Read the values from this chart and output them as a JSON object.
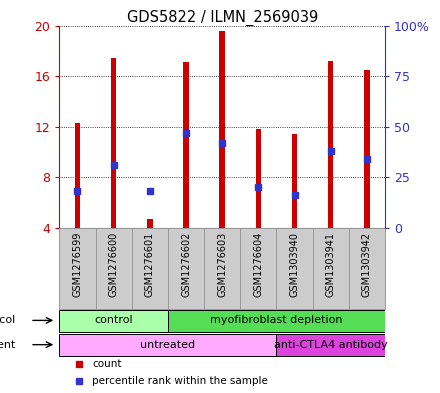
{
  "title": "GDS5822 / ILMN_2569039",
  "samples": [
    "GSM1276599",
    "GSM1276600",
    "GSM1276601",
    "GSM1276602",
    "GSM1276603",
    "GSM1276604",
    "GSM1303940",
    "GSM1303941",
    "GSM1303942"
  ],
  "counts": [
    12.3,
    17.4,
    4.7,
    17.1,
    19.6,
    11.8,
    11.4,
    17.2,
    16.5
  ],
  "percentile_ranks_pct": [
    18.0,
    31.0,
    18.0,
    47.0,
    42.0,
    20.0,
    16.0,
    38.0,
    34.0
  ],
  "ylim_left": [
    4,
    20
  ],
  "ylim_right": [
    0,
    100
  ],
  "yticks_left": [
    4,
    8,
    12,
    16,
    20
  ],
  "yticks_right": [
    0,
    25,
    50,
    75,
    100
  ],
  "ytick_labels_left": [
    "4",
    "8",
    "12",
    "16",
    "20"
  ],
  "ytick_labels_right": [
    "0",
    "25",
    "50",
    "75",
    "100%"
  ],
  "bar_color": "#cc0000",
  "dot_color": "#3333cc",
  "bar_bottom": 4,
  "bar_width": 0.15,
  "protocol_groups": [
    {
      "label": "control",
      "start": 0,
      "end": 3,
      "color": "#aaffaa"
    },
    {
      "label": "myofibroblast depletion",
      "start": 3,
      "end": 9,
      "color": "#55dd55"
    }
  ],
  "agent_groups": [
    {
      "label": "untreated",
      "start": 0,
      "end": 6,
      "color": "#ffaaff"
    },
    {
      "label": "anti-CTLA4 antibody",
      "start": 6,
      "end": 9,
      "color": "#dd44dd"
    }
  ],
  "legend_items": [
    {
      "label": "count",
      "color": "#cc0000"
    },
    {
      "label": "percentile rank within the sample",
      "color": "#3333cc"
    }
  ],
  "label_color_left": "#cc0000",
  "label_color_right": "#3333cc",
  "tickbox_color": "#cccccc",
  "tickbox_border": "#999999"
}
